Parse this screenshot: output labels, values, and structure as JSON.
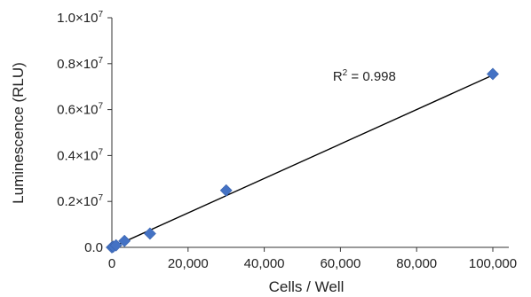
{
  "chart_data": {
    "type": "scatter",
    "xlabel": "Cells / Well",
    "ylabel": "Luminescence (RLU)",
    "xlim": [
      0,
      100000
    ],
    "ylim": [
      0,
      10000000
    ],
    "x_ticks": [
      0,
      20000,
      40000,
      60000,
      80000,
      100000
    ],
    "x_tick_labels": [
      "0",
      "20,000",
      "40,000",
      "60,000",
      "80,000",
      "100,000"
    ],
    "y_ticks": [
      0,
      2000000,
      4000000,
      6000000,
      8000000,
      10000000
    ],
    "y_tick_labels": [
      {
        "base": "0.0",
        "exp": ""
      },
      {
        "base": "0.2×10",
        "exp": "7"
      },
      {
        "base": "0.4×10",
        "exp": "7"
      },
      {
        "base": "0.6×10",
        "exp": "7"
      },
      {
        "base": "0.8×10",
        "exp": "7"
      },
      {
        "base": "1.0×10",
        "exp": "7"
      }
    ],
    "series": [
      {
        "marker": "diamond",
        "color": "#4472C4",
        "points": [
          {
            "x": 0,
            "y": 0
          },
          {
            "x": 370,
            "y": 30000
          },
          {
            "x": 1100,
            "y": 90000
          },
          {
            "x": 3300,
            "y": 280000
          },
          {
            "x": 10000,
            "y": 600000
          },
          {
            "x": 30000,
            "y": 2480000
          },
          {
            "x": 100000,
            "y": 7550000
          }
        ]
      }
    ],
    "trendline": {
      "type": "linear",
      "x": [
        0,
        100000
      ],
      "y": [
        0,
        7500000
      ],
      "color": "#000000"
    },
    "annotation": {
      "base": "R",
      "sup": "2",
      "rest": " = 0.998",
      "x": 58000,
      "y": 7250000
    },
    "grid": false
  }
}
